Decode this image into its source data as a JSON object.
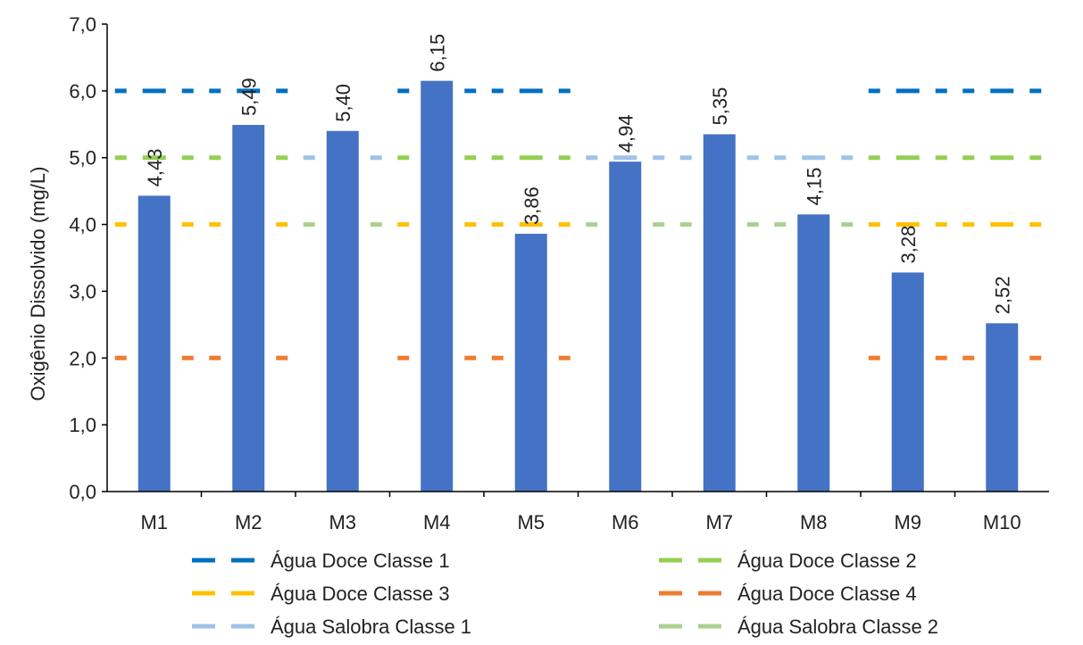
{
  "chart_data": {
    "type": "bar",
    "title": "",
    "xlabel": "",
    "ylabel": "Oxigênio Dissolvido (mg/L)",
    "ylim": [
      0,
      7
    ],
    "yticks": [
      "0,0",
      "1,0",
      "2,0",
      "3,0",
      "4,0",
      "5,0",
      "6,0",
      "7,0"
    ],
    "categories": [
      "M1",
      "M2",
      "M3",
      "M4",
      "M5",
      "M6",
      "M7",
      "M8",
      "M9",
      "M10"
    ],
    "bar_color": "#4472C4",
    "values": [
      4.43,
      5.49,
      5.4,
      6.15,
      3.86,
      4.94,
      5.35,
      4.15,
      3.28,
      2.52
    ],
    "value_labels": [
      "4,43",
      "5,49",
      "5,40",
      "6,15",
      "3,86",
      "4,94",
      "5,35",
      "4,15",
      "3,28",
      "2,52"
    ],
    "reference_lines": [
      {
        "name": "Água Doce Classe 1",
        "value": 6,
        "color": "#0070C0",
        "categories": [
          "M1",
          "M2",
          "M4",
          "M5",
          "M9",
          "M10"
        ]
      },
      {
        "name": "Água Doce Classe 2",
        "value": 5,
        "color": "#92D050",
        "categories": [
          "M1",
          "M2",
          "M4",
          "M5",
          "M9",
          "M10"
        ]
      },
      {
        "name": "Água Doce Classe 3",
        "value": 4,
        "color": "#FFC000",
        "categories": [
          "M1",
          "M2",
          "M4",
          "M5",
          "M9",
          "M10"
        ]
      },
      {
        "name": "Água Doce Classe 4",
        "value": 2,
        "color": "#ED7D31",
        "categories": [
          "M1",
          "M2",
          "M4",
          "M5",
          "M9",
          "M10"
        ]
      },
      {
        "name": "Água Salobra Classe 1",
        "value": 5,
        "color": "#9DC3E6",
        "categories": [
          "M3",
          "M6",
          "M7",
          "M8"
        ]
      },
      {
        "name": "Água Salobra Classe 2",
        "value": 4,
        "color": "#A9D18E",
        "categories": [
          "M3",
          "M6",
          "M7",
          "M8"
        ]
      }
    ],
    "legend_position": "bottom",
    "grid": false
  }
}
